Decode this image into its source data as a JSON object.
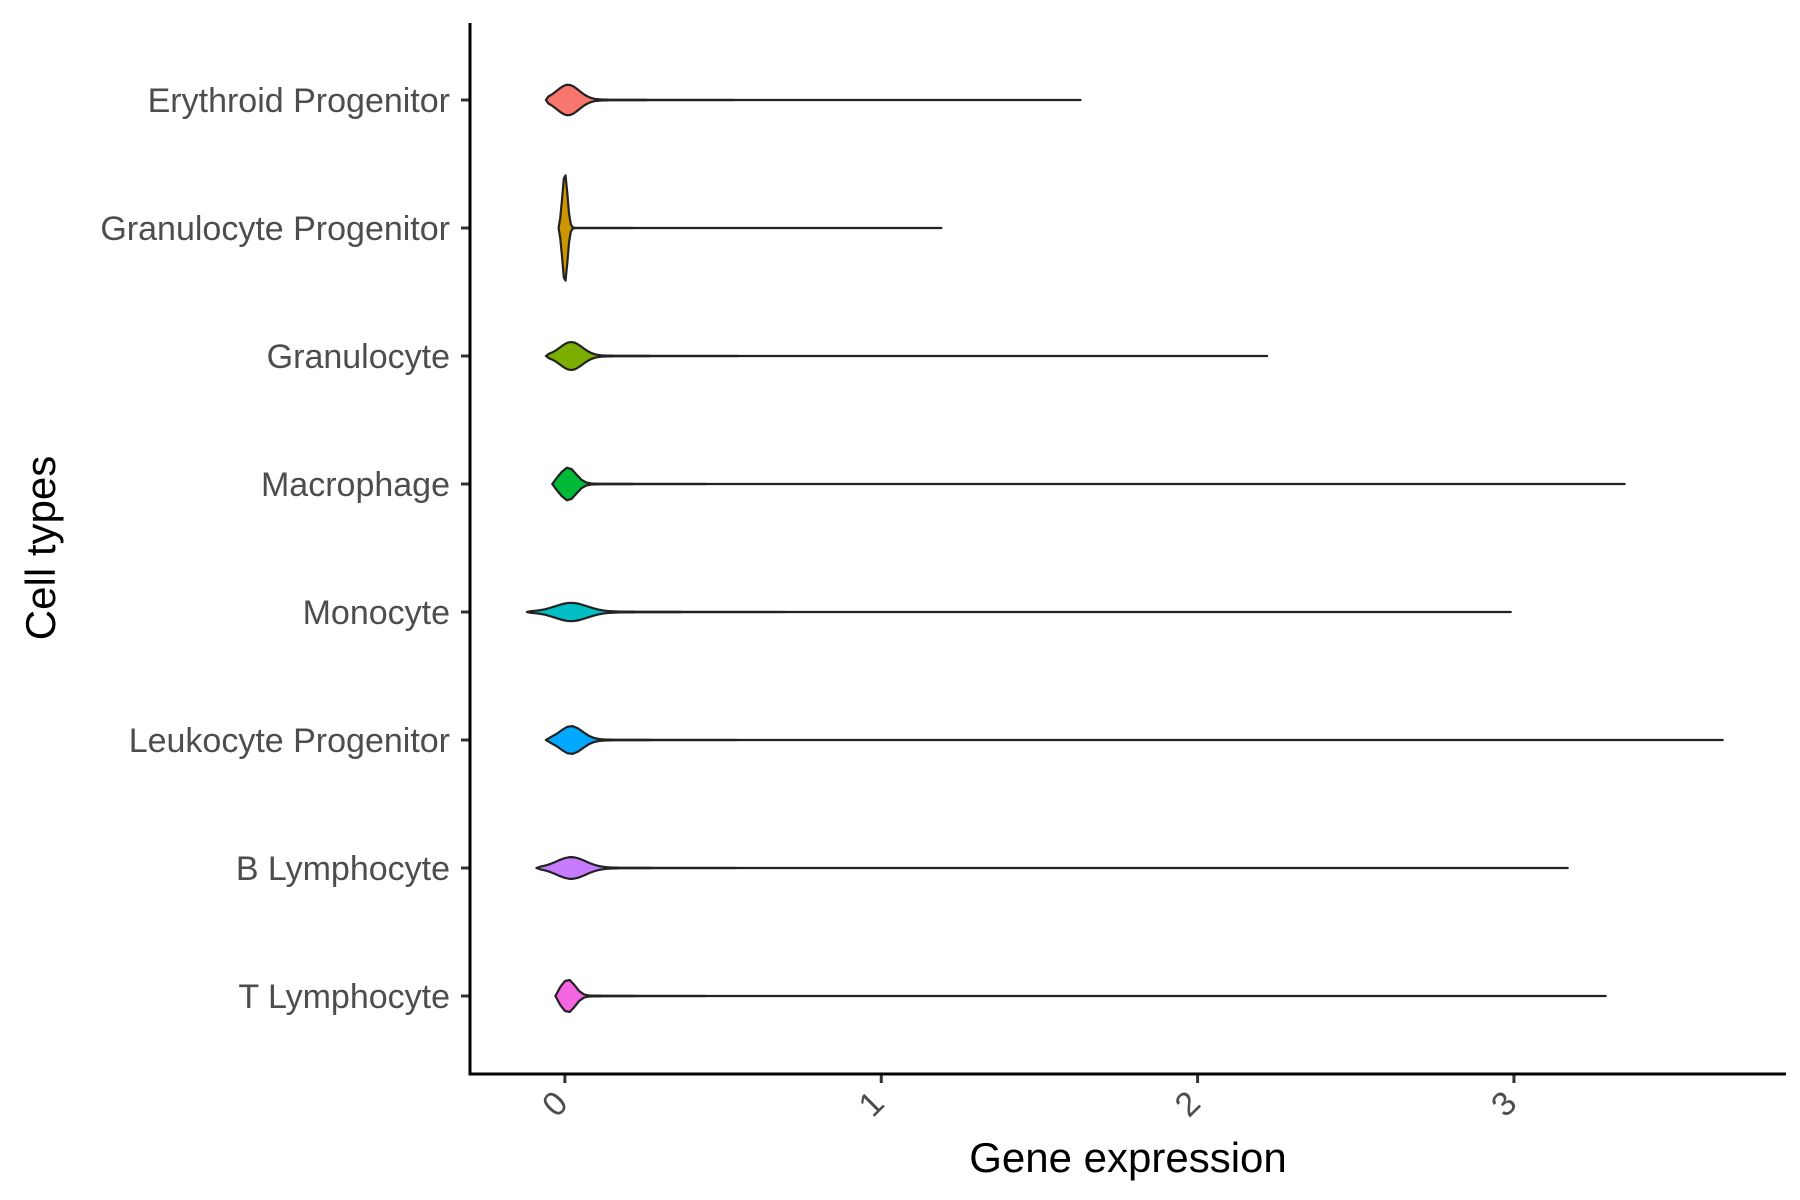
{
  "chart_data": {
    "type": "violin",
    "orientation": "horizontal",
    "xlabel": "Gene expression",
    "ylabel": "Cell types",
    "xlim": [
      -0.3,
      3.86
    ],
    "x_ticks": [
      "0",
      "1",
      "2",
      "3"
    ],
    "x_tick_rotation_deg": -45,
    "grid": false,
    "legend": "none",
    "categories": [
      {
        "name": "T Lymphocyte",
        "color": "#F564E3",
        "min": -0.03,
        "max": 3.29,
        "peak": 0.01,
        "spread": 0.022,
        "width": 0.26,
        "tail": 0.1,
        "tail_scale": 0.25
      },
      {
        "name": "B Lymphocyte",
        "color": "#C77CFF",
        "min": -0.09,
        "max": 3.17,
        "peak": 0.02,
        "spread": 0.045,
        "width": 0.17,
        "tail": 0.1,
        "tail_scale": 0.3
      },
      {
        "name": "Leukocyte Progenitor",
        "color": "#00A9FF",
        "min": -0.06,
        "max": 3.66,
        "peak": 0.02,
        "spread": 0.035,
        "width": 0.22,
        "tail": 0.1,
        "tail_scale": 0.3
      },
      {
        "name": "Monocyte",
        "color": "#00BFC4",
        "min": -0.12,
        "max": 2.99,
        "peak": 0.02,
        "spread": 0.05,
        "width": 0.14,
        "tail": 0.12,
        "tail_scale": 0.35
      },
      {
        "name": "Macrophage",
        "color": "#00BA38",
        "min": -0.04,
        "max": 3.35,
        "peak": 0.01,
        "spread": 0.025,
        "width": 0.26,
        "tail": 0.1,
        "tail_scale": 0.25
      },
      {
        "name": "Granulocyte",
        "color": "#7CAE00",
        "min": -0.06,
        "max": 2.22,
        "peak": 0.02,
        "spread": 0.035,
        "width": 0.22,
        "tail": 0.1,
        "tail_scale": 0.3
      },
      {
        "name": "Granulocyte Progenitor",
        "color": "#CD9600",
        "min": -0.02,
        "max": 1.19,
        "peak": 0.0,
        "spread": 0.008,
        "width": 0.88,
        "tail": 0.05,
        "tail_scale": 0.2
      },
      {
        "name": "Erythroid Progenitor",
        "color": "#F8766D",
        "min": -0.06,
        "max": 1.63,
        "peak": 0.01,
        "spread": 0.035,
        "width": 0.24,
        "tail": 0.1,
        "tail_scale": 0.3
      }
    ]
  }
}
